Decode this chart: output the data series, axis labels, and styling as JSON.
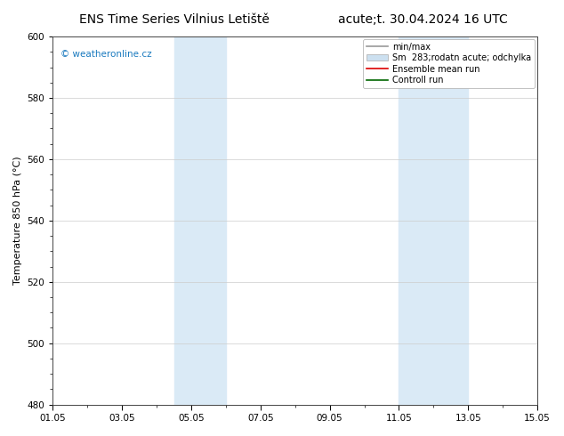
{
  "title_left": "ENS Time Series Vilnius Letiště",
  "title_right": "acute;t. 30.04.2024 16 UTC",
  "ylabel": "Temperature 850 hPa (°C)",
  "xlabel_ticks": [
    "01.05",
    "03.05",
    "05.05",
    "07.05",
    "09.05",
    "11.05",
    "13.05",
    "15.05"
  ],
  "xtick_positions": [
    0,
    2,
    4,
    6,
    8,
    10,
    12,
    14
  ],
  "yticks": [
    480,
    500,
    520,
    540,
    560,
    580,
    600
  ],
  "ylim": [
    480,
    600
  ],
  "xlim": [
    0,
    14
  ],
  "shaded_bands": [
    {
      "x_start": 3.5,
      "x_end": 5.0
    },
    {
      "x_start": 10.0,
      "x_end": 12.0
    }
  ],
  "shade_color": "#daeaf6",
  "watermark_text": "© weatheronline.cz",
  "watermark_color": "#1a7abf",
  "background_color": "#ffffff",
  "grid_color": "#cccccc",
  "legend_items": [
    {
      "label": "min/max",
      "color": "#999999",
      "lw": 1.2,
      "type": "line"
    },
    {
      "label": "Sm  283;rodatn acute; odchylka",
      "color": "#cce0f0",
      "type": "patch"
    },
    {
      "label": "Ensemble mean run",
      "color": "#dd0000",
      "lw": 1.2,
      "type": "line"
    },
    {
      "label": "Controll run",
      "color": "#006600",
      "lw": 1.2,
      "type": "line"
    }
  ],
  "title_fontsize": 10,
  "axis_fontsize": 8,
  "tick_fontsize": 7.5,
  "legend_fontsize": 7,
  "watermark_fontsize": 7.5
}
